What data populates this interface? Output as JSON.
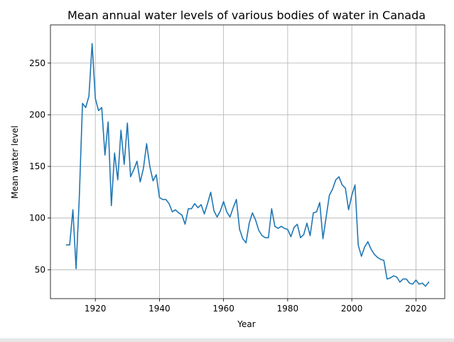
{
  "chart_data": {
    "type": "line",
    "title": "Mean annual water levels of various bodies of water in Canada",
    "xlabel": "Year",
    "ylabel": "Mean water level",
    "xlim": [
      1906,
      2029
    ],
    "ylim": [
      22,
      287
    ],
    "x_ticks": [
      1920,
      1940,
      1960,
      1980,
      2000,
      2020
    ],
    "y_ticks": [
      50,
      100,
      150,
      200,
      250
    ],
    "grid": true,
    "line_color": "#1f77b4",
    "series": [
      {
        "name": "Mean water level",
        "x": [
          1911,
          1912,
          1913,
          1914,
          1915,
          1916,
          1917,
          1918,
          1919,
          1920,
          1921,
          1922,
          1923,
          1924,
          1925,
          1926,
          1927,
          1928,
          1929,
          1930,
          1931,
          1932,
          1933,
          1934,
          1935,
          1936,
          1937,
          1938,
          1939,
          1940,
          1941,
          1942,
          1943,
          1944,
          1945,
          1946,
          1947,
          1948,
          1949,
          1950,
          1951,
          1952,
          1953,
          1954,
          1955,
          1956,
          1957,
          1958,
          1959,
          1960,
          1961,
          1962,
          1963,
          1964,
          1965,
          1966,
          1967,
          1968,
          1969,
          1970,
          1971,
          1972,
          1973,
          1974,
          1975,
          1976,
          1977,
          1978,
          1979,
          1980,
          1981,
          1982,
          1983,
          1984,
          1985,
          1986,
          1987,
          1988,
          1989,
          1990,
          1991,
          1992,
          1993,
          1994,
          1995,
          1996,
          1997,
          1998,
          1999,
          2000,
          2001,
          2002,
          2003,
          2004,
          2005,
          2006,
          2007,
          2008,
          2009,
          2010,
          2011,
          2012,
          2013,
          2014,
          2015,
          2016,
          2017,
          2018,
          2019,
          2020,
          2021,
          2022,
          2023,
          2024
        ],
        "values": [
          74,
          74,
          108,
          51,
          120,
          211,
          207,
          218,
          269,
          216,
          204,
          207,
          161,
          193,
          112,
          163,
          137,
          185,
          152,
          192,
          140,
          147,
          155,
          135,
          148,
          172,
          150,
          136,
          142,
          120,
          118,
          118,
          114,
          106,
          108,
          105,
          103,
          94,
          109,
          109,
          114,
          110,
          113,
          104,
          114,
          125,
          107,
          101,
          107,
          116,
          106,
          101,
          110,
          118,
          89,
          80,
          76,
          95,
          105,
          98,
          88,
          83,
          81,
          81,
          109,
          92,
          90,
          92,
          90,
          89,
          82,
          91,
          94,
          81,
          84,
          95,
          83,
          105,
          106,
          115,
          80,
          101,
          122,
          128,
          137,
          140,
          132,
          129,
          108,
          122,
          132,
          74,
          63,
          72,
          77,
          70,
          65,
          62,
          60,
          59,
          41,
          42,
          44,
          43,
          38,
          41,
          41,
          37,
          36,
          40,
          36,
          37,
          34,
          38
        ]
      }
    ]
  }
}
